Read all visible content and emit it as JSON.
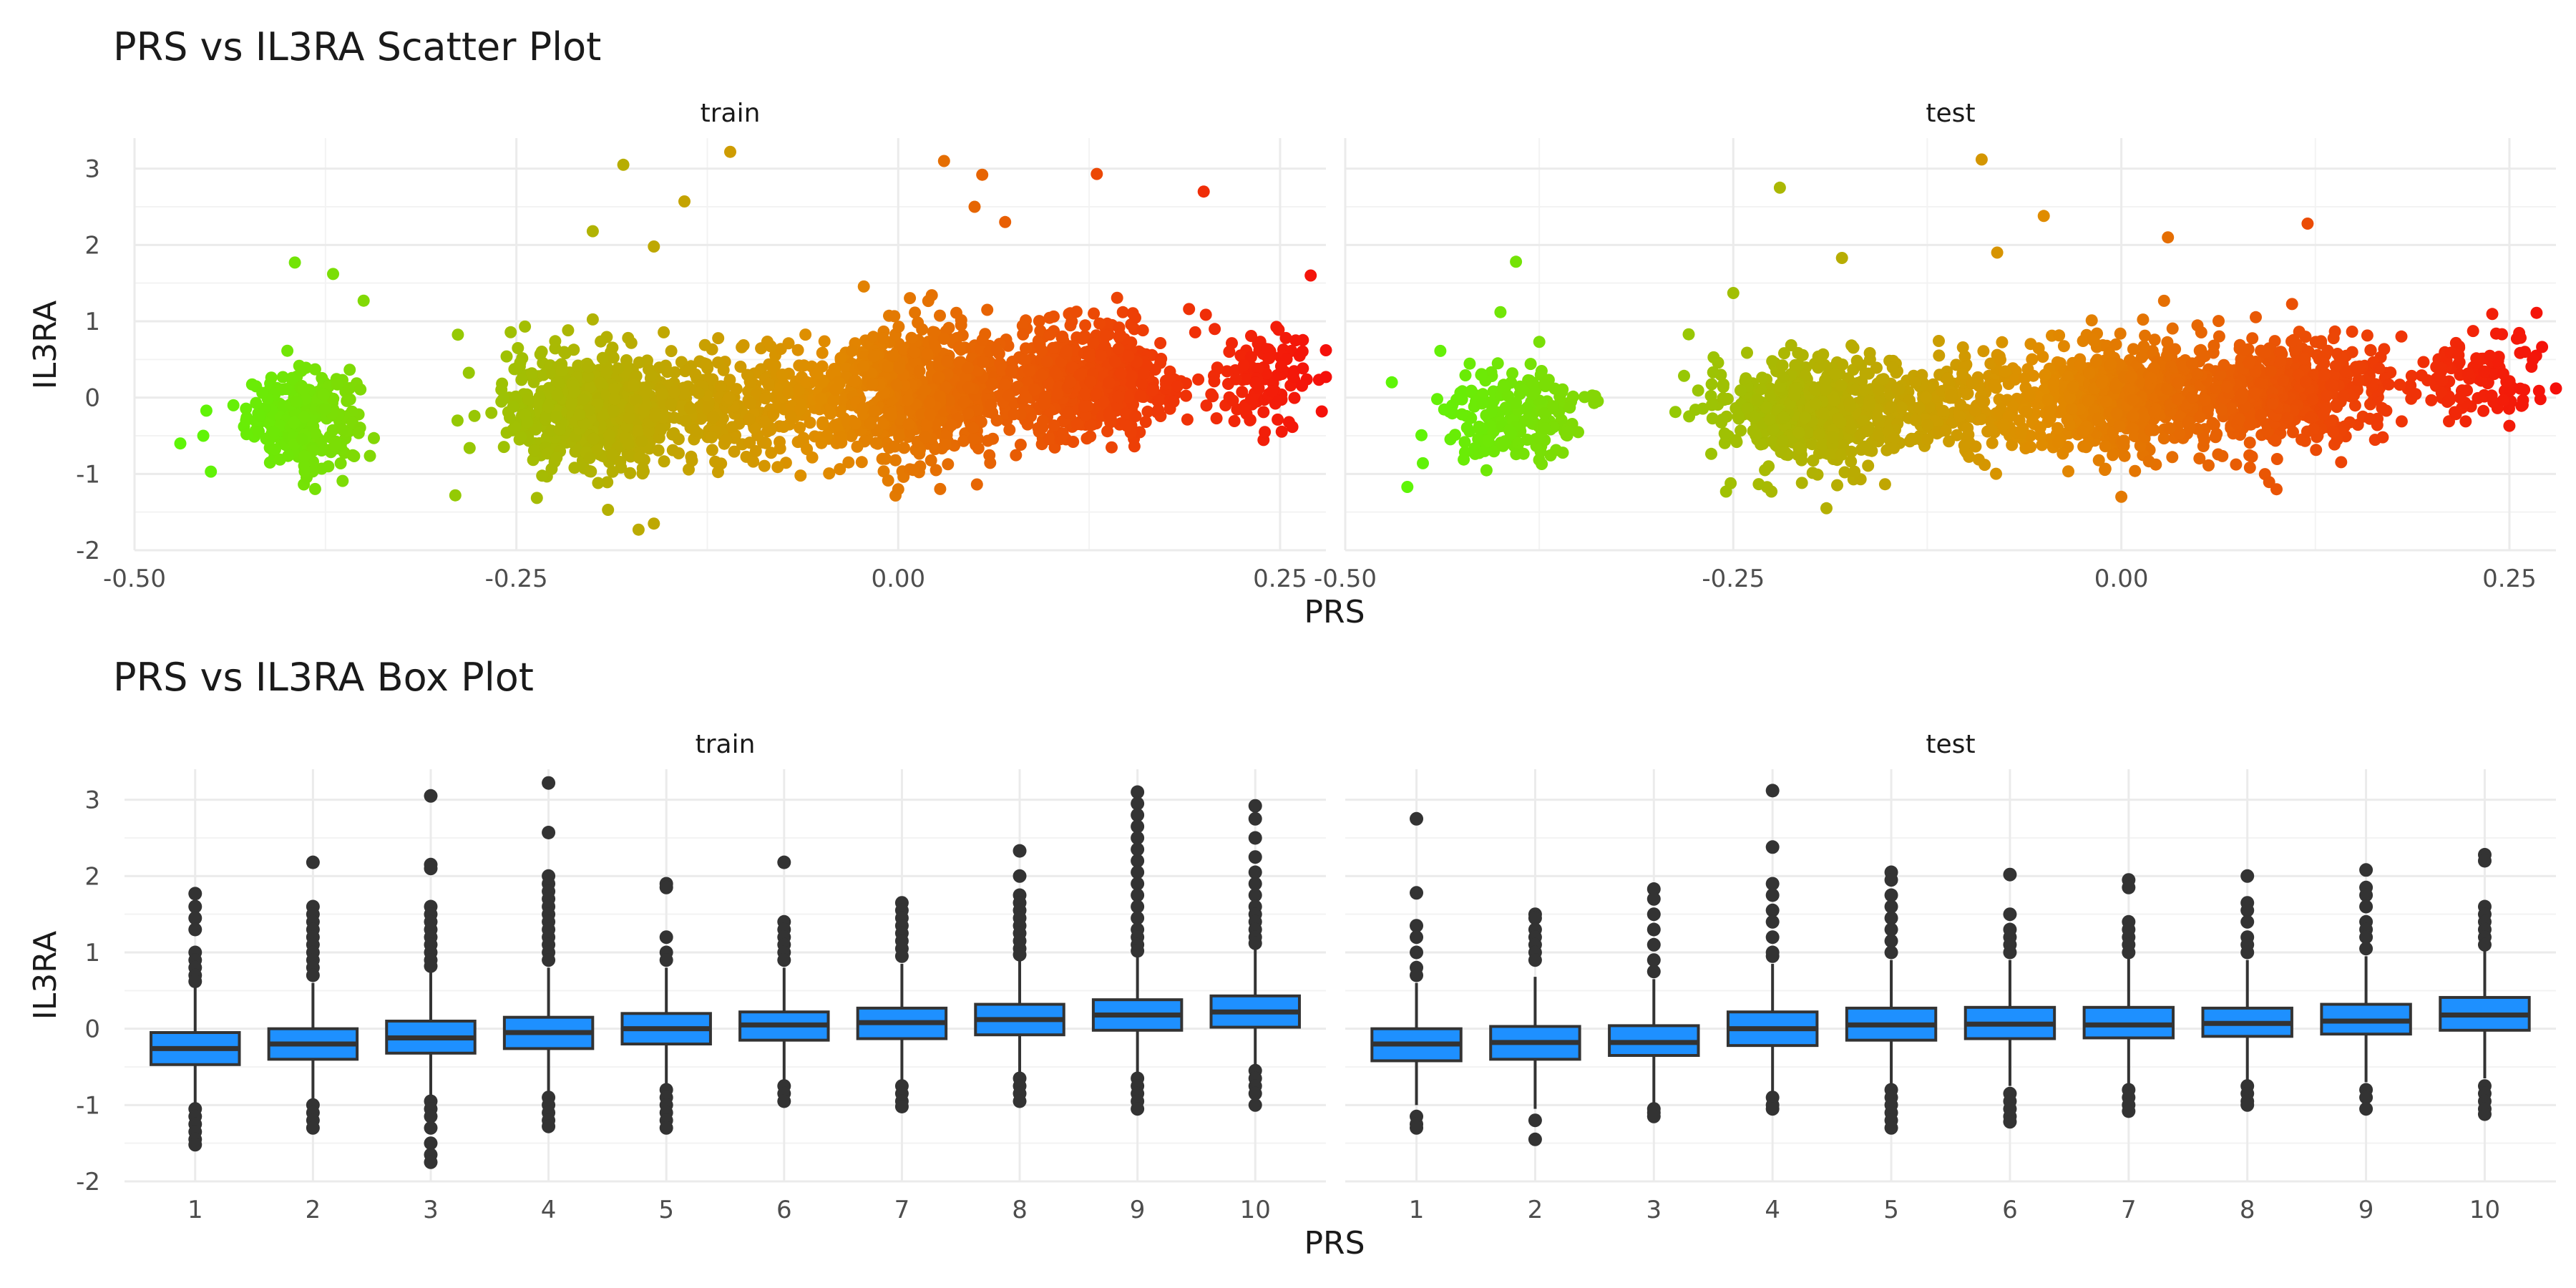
{
  "chart_data": [
    {
      "type": "scatter",
      "title": "PRS vs IL3RA Scatter Plot",
      "xlabel": "PRS",
      "ylabel": "IL3RA",
      "xlim": [
        -0.5,
        0.28
      ],
      "ylim": [
        -2,
        3.4
      ],
      "x_ticks": [
        "-0.50",
        "-0.25",
        "0.00",
        "0.25"
      ],
      "x_tick_values": [
        -0.5,
        -0.25,
        0,
        0.25
      ],
      "y_ticks": [
        "-2",
        "-1",
        "0",
        "1",
        "2",
        "3"
      ],
      "y_tick_values": [
        -2,
        -1,
        0,
        1,
        2,
        3
      ],
      "grid": true,
      "color_gradient": {
        "low": "#5ef507",
        "mid": "#e08d00",
        "high": "#f5100a",
        "range": [
          -0.46,
          0.28
        ]
      },
      "facets": [
        {
          "name": "train",
          "clusters": [
            {
              "x_mean": -0.39,
              "x_sd": 0.018,
              "y_mean": -0.28,
              "y_sd": 0.3,
              "n": 280
            },
            {
              "x_mean": -0.2,
              "x_sd": 0.028,
              "y_mean": -0.18,
              "y_sd": 0.38,
              "n": 650
            },
            {
              "x_mean": -0.1,
              "x_sd": 0.045,
              "y_mean": -0.06,
              "y_sd": 0.35,
              "n": 350
            },
            {
              "x_mean": 0.01,
              "x_sd": 0.03,
              "y_mean": 0.08,
              "y_sd": 0.42,
              "n": 650
            },
            {
              "x_mean": 0.12,
              "x_sd": 0.035,
              "y_mean": 0.22,
              "y_sd": 0.38,
              "n": 600
            },
            {
              "x_mean": 0.24,
              "x_sd": 0.018,
              "y_mean": 0.28,
              "y_sd": 0.32,
              "n": 110
            }
          ],
          "outliers": [
            {
              "x": -0.395,
              "y": 1.77
            },
            {
              "x": -0.37,
              "y": 1.62
            },
            {
              "x": -0.35,
              "y": 1.27
            },
            {
              "x": -0.47,
              "y": -0.6
            },
            {
              "x": -0.455,
              "y": -0.5
            },
            {
              "x": -0.45,
              "y": -0.97
            },
            {
              "x": -0.18,
              "y": 3.05
            },
            {
              "x": -0.11,
              "y": 3.22
            },
            {
              "x": -0.14,
              "y": 2.57
            },
            {
              "x": -0.2,
              "y": 2.18
            },
            {
              "x": -0.16,
              "y": 1.98
            },
            {
              "x": 0.03,
              "y": 3.1
            },
            {
              "x": 0.055,
              "y": 2.92
            },
            {
              "x": 0.13,
              "y": 2.93
            },
            {
              "x": 0.2,
              "y": 2.7
            },
            {
              "x": 0.05,
              "y": 2.5
            },
            {
              "x": 0.07,
              "y": 2.3
            },
            {
              "x": 0.27,
              "y": 1.6
            },
            {
              "x": -0.19,
              "y": -1.47
            },
            {
              "x": -0.17,
              "y": -1.73
            },
            {
              "x": -0.16,
              "y": -1.65
            },
            {
              "x": -0.29,
              "y": -1.28
            },
            {
              "x": 0.0,
              "y": -1.2
            },
            {
              "x": 0.28,
              "y": 0.62
            },
            {
              "x": 0.28,
              "y": 0.27
            },
            {
              "x": 0.24,
              "y": -0.45
            }
          ]
        },
        {
          "name": "test",
          "clusters": [
            {
              "x_mean": -0.39,
              "x_sd": 0.022,
              "y_mean": -0.25,
              "y_sd": 0.3,
              "n": 200
            },
            {
              "x_mean": -0.2,
              "x_sd": 0.03,
              "y_mean": -0.2,
              "y_sd": 0.36,
              "n": 550
            },
            {
              "x_mean": -0.1,
              "x_sd": 0.04,
              "y_mean": -0.1,
              "y_sd": 0.32,
              "n": 250
            },
            {
              "x_mean": 0.0,
              "x_sd": 0.035,
              "y_mean": 0.02,
              "y_sd": 0.38,
              "n": 550
            },
            {
              "x_mean": 0.11,
              "x_sd": 0.035,
              "y_mean": 0.1,
              "y_sd": 0.35,
              "n": 500
            },
            {
              "x_mean": 0.23,
              "x_sd": 0.02,
              "y_mean": 0.28,
              "y_sd": 0.3,
              "n": 100
            }
          ],
          "outliers": [
            {
              "x": -0.39,
              "y": 1.78
            },
            {
              "x": -0.4,
              "y": 1.12
            },
            {
              "x": -0.375,
              "y": 0.73
            },
            {
              "x": -0.47,
              "y": 0.2
            },
            {
              "x": -0.46,
              "y": -1.17
            },
            {
              "x": -0.45,
              "y": -0.86
            },
            {
              "x": -0.22,
              "y": 2.75
            },
            {
              "x": -0.09,
              "y": 3.12
            },
            {
              "x": -0.05,
              "y": 2.38
            },
            {
              "x": 0.03,
              "y": 2.1
            },
            {
              "x": 0.12,
              "y": 2.28
            },
            {
              "x": -0.08,
              "y": 1.9
            },
            {
              "x": -0.18,
              "y": 1.83
            },
            {
              "x": -0.25,
              "y": 1.37
            },
            {
              "x": -0.19,
              "y": -1.45
            },
            {
              "x": 0.0,
              "y": -1.3
            },
            {
              "x": 0.1,
              "y": -1.2
            },
            {
              "x": 0.25,
              "y": -0.37
            },
            {
              "x": 0.28,
              "y": 0.12
            },
            {
              "x": 0.26,
              "y": 0.6
            },
            {
              "x": 0.27,
              "y": -0.02
            }
          ]
        }
      ]
    },
    {
      "type": "box",
      "title": "PRS vs IL3RA Box Plot",
      "xlabel": "PRS",
      "ylabel": "IL3RA",
      "categories": [
        "1",
        "2",
        "3",
        "4",
        "5",
        "6",
        "7",
        "8",
        "9",
        "10"
      ],
      "ylim": [
        -2,
        3.4
      ],
      "y_ticks": [
        "-2",
        "-1",
        "0",
        "1",
        "2",
        "3"
      ],
      "y_tick_values": [
        -2,
        -1,
        0,
        1,
        2,
        3
      ],
      "grid": true,
      "box_color": "#1e90ff",
      "facets": [
        {
          "name": "train",
          "boxes": [
            {
              "q1": -0.47,
              "median": -0.26,
              "q3": -0.05,
              "lower": -1.0,
              "upper": 0.55,
              "outliers": [
                1.77,
                1.6,
                1.45,
                1.3,
                1.0,
                0.9,
                0.8,
                0.7,
                0.62,
                -1.05,
                -1.15,
                -1.25,
                -1.35,
                -1.45,
                -1.52
              ]
            },
            {
              "q1": -0.4,
              "median": -0.2,
              "q3": 0.0,
              "lower": -0.95,
              "upper": 0.6,
              "outliers": [
                2.18,
                1.6,
                1.5,
                1.4,
                1.3,
                1.2,
                1.1,
                1.0,
                0.9,
                0.8,
                0.7,
                -1.0,
                -1.1,
                -1.2,
                -1.3
              ]
            },
            {
              "q1": -0.32,
              "median": -0.12,
              "q3": 0.1,
              "lower": -0.9,
              "upper": 0.75,
              "outliers": [
                3.05,
                2.15,
                2.1,
                1.6,
                1.5,
                1.4,
                1.3,
                1.2,
                1.1,
                1.0,
                0.9,
                0.82,
                -0.95,
                -1.05,
                -1.15,
                -1.3,
                -1.5,
                -1.65,
                -1.75
              ]
            },
            {
              "q1": -0.26,
              "median": -0.05,
              "q3": 0.15,
              "lower": -0.85,
              "upper": 0.8,
              "outliers": [
                3.22,
                2.57,
                2.0,
                1.9,
                1.8,
                1.7,
                1.6,
                1.5,
                1.4,
                1.3,
                1.2,
                1.1,
                1.0,
                0.9,
                -0.9,
                -1.0,
                -1.1,
                -1.2,
                -1.28
              ]
            },
            {
              "q1": -0.2,
              "median": 0.0,
              "q3": 0.2,
              "lower": -0.75,
              "upper": 0.8,
              "outliers": [
                1.9,
                1.85,
                1.2,
                1.0,
                0.9,
                -0.8,
                -0.9,
                -1.0,
                -1.1,
                -1.2,
                -1.3
              ]
            },
            {
              "q1": -0.15,
              "median": 0.05,
              "q3": 0.22,
              "lower": -0.7,
              "upper": 0.8,
              "outliers": [
                2.18,
                1.4,
                1.3,
                1.2,
                1.1,
                1.0,
                0.9,
                -0.75,
                -0.85,
                -0.95
              ]
            },
            {
              "q1": -0.13,
              "median": 0.08,
              "q3": 0.27,
              "lower": -0.7,
              "upper": 0.85,
              "outliers": [
                1.65,
                1.55,
                1.45,
                1.35,
                1.25,
                1.15,
                1.05,
                0.95,
                -0.75,
                -0.85,
                -0.95,
                -1.02
              ]
            },
            {
              "q1": -0.08,
              "median": 0.12,
              "q3": 0.32,
              "lower": -0.6,
              "upper": 0.9,
              "outliers": [
                2.33,
                2.0,
                1.75,
                1.65,
                1.55,
                1.45,
                1.35,
                1.25,
                1.15,
                1.05,
                0.97,
                -0.65,
                -0.75,
                -0.85,
                -0.95
              ]
            },
            {
              "q1": -0.02,
              "median": 0.18,
              "q3": 0.38,
              "lower": -0.6,
              "upper": 0.95,
              "outliers": [
                3.1,
                2.95,
                2.8,
                2.65,
                2.5,
                2.35,
                2.2,
                2.05,
                1.9,
                1.75,
                1.6,
                1.45,
                1.3,
                1.2,
                1.1,
                1.02,
                -0.65,
                -0.75,
                -0.85,
                -0.95,
                -1.05
              ]
            },
            {
              "q1": 0.02,
              "median": 0.22,
              "q3": 0.43,
              "lower": -0.5,
              "upper": 1.05,
              "outliers": [
                2.92,
                2.75,
                2.5,
                2.25,
                2.05,
                1.9,
                1.75,
                1.6,
                1.5,
                1.4,
                1.3,
                1.2,
                1.12,
                -0.55,
                -0.65,
                -0.75,
                -0.85,
                -1.0
              ]
            }
          ]
        },
        {
          "name": "test",
          "boxes": [
            {
              "q1": -0.42,
              "median": -0.2,
              "q3": 0.0,
              "lower": -1.0,
              "upper": 0.6,
              "outliers": [
                2.75,
                1.78,
                1.35,
                1.2,
                1.0,
                0.8,
                0.7,
                -1.15,
                -1.25,
                -1.3
              ]
            },
            {
              "q1": -0.4,
              "median": -0.18,
              "q3": 0.03,
              "lower": -1.05,
              "upper": 0.68,
              "outliers": [
                1.5,
                1.45,
                1.3,
                1.2,
                1.1,
                1.0,
                0.9,
                -1.2,
                -1.45
              ]
            },
            {
              "q1": -0.35,
              "median": -0.18,
              "q3": 0.04,
              "lower": -1.0,
              "upper": 0.65,
              "outliers": [
                1.83,
                1.7,
                1.5,
                1.3,
                1.1,
                0.9,
                0.75,
                -1.05,
                -1.1,
                -1.15
              ]
            },
            {
              "q1": -0.22,
              "median": 0.0,
              "q3": 0.22,
              "lower": -0.85,
              "upper": 0.85,
              "outliers": [
                3.12,
                2.38,
                1.9,
                1.75,
                1.55,
                1.4,
                1.2,
                1.0,
                0.95,
                -0.9,
                -1.0,
                -1.05
              ]
            },
            {
              "q1": -0.15,
              "median": 0.05,
              "q3": 0.27,
              "lower": -0.75,
              "upper": 0.9,
              "outliers": [
                2.05,
                1.95,
                1.75,
                1.6,
                1.45,
                1.3,
                1.15,
                1.0,
                -0.8,
                -0.9,
                -1.0,
                -1.1,
                -1.2,
                -1.3
              ]
            },
            {
              "q1": -0.13,
              "median": 0.06,
              "q3": 0.28,
              "lower": -0.75,
              "upper": 0.9,
              "outliers": [
                2.02,
                1.5,
                1.3,
                1.2,
                1.1,
                1.0,
                -0.85,
                -0.95,
                -1.05,
                -1.15,
                -1.22
              ]
            },
            {
              "q1": -0.12,
              "median": 0.05,
              "q3": 0.28,
              "lower": -0.75,
              "upper": 0.95,
              "outliers": [
                1.95,
                1.85,
                1.4,
                1.3,
                1.2,
                1.1,
                1.0,
                -0.8,
                -0.9,
                -1.0,
                -1.08
              ]
            },
            {
              "q1": -0.1,
              "median": 0.07,
              "q3": 0.27,
              "lower": -0.7,
              "upper": 0.9,
              "outliers": [
                2.0,
                1.65,
                1.55,
                1.4,
                1.2,
                1.1,
                1.0,
                -0.75,
                -0.85,
                -0.95,
                -1.0
              ]
            },
            {
              "q1": -0.07,
              "median": 0.1,
              "q3": 0.32,
              "lower": -0.7,
              "upper": 0.95,
              "outliers": [
                2.08,
                1.85,
                1.75,
                1.6,
                1.4,
                1.3,
                1.2,
                1.05,
                -0.8,
                -0.9,
                -1.05
              ]
            },
            {
              "q1": -0.02,
              "median": 0.18,
              "q3": 0.41,
              "lower": -0.65,
              "upper": 1.05,
              "outliers": [
                2.28,
                2.2,
                1.6,
                1.5,
                1.4,
                1.3,
                1.2,
                1.1,
                -0.75,
                -0.85,
                -0.95,
                -1.05,
                -1.12
              ]
            }
          ]
        }
      ]
    }
  ]
}
